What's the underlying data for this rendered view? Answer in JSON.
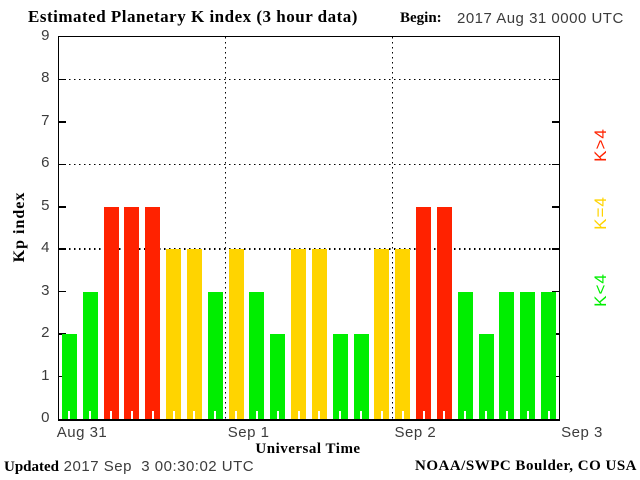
{
  "header": {
    "title": "Estimated Planetary K index (3 hour data)",
    "begin_label": "Begin:",
    "begin_value": "2017 Aug 31 0000 UTC"
  },
  "chart_data": {
    "type": "bar",
    "title": "Estimated Planetary K index (3 hour data)",
    "begin_time": "2017 Aug 31 0000 UTC",
    "xlabel": "Universal Time",
    "ylabel": "Kp index",
    "ylim": [
      0,
      9
    ],
    "y_ticks": [
      0,
      1,
      2,
      3,
      4,
      5,
      6,
      7,
      8,
      9
    ],
    "dotted_gridlines_y": [
      4,
      6,
      8
    ],
    "x_day_ticks": [
      "Aug 31",
      "Sep 1",
      "Sep 2",
      "Sep 3"
    ],
    "hours_per_bar": 3,
    "bars_per_day": 8,
    "values": [
      2,
      3,
      5,
      5,
      5,
      4,
      4,
      3,
      4,
      3,
      2,
      4,
      4,
      2,
      2,
      4,
      4,
      5,
      5,
      3,
      2,
      3,
      3,
      3
    ],
    "colors": {
      "below4": "#00ee00",
      "equal4": "#ffd400",
      "above4": "#ff2200"
    },
    "legend": [
      {
        "label": "K>4",
        "color": "#ff2200"
      },
      {
        "label": "K=4",
        "color": "#ffd400"
      },
      {
        "label": "K<4",
        "color": "#00ee00"
      }
    ],
    "grid": "dotted at Kp 4,6,8 and at day boundaries"
  },
  "footer": {
    "updated_label": "Updated",
    "updated_value": " 2017 Sep  3 00:30:02 UTC",
    "credit": "NOAA/SWPC Boulder, CO USA"
  }
}
